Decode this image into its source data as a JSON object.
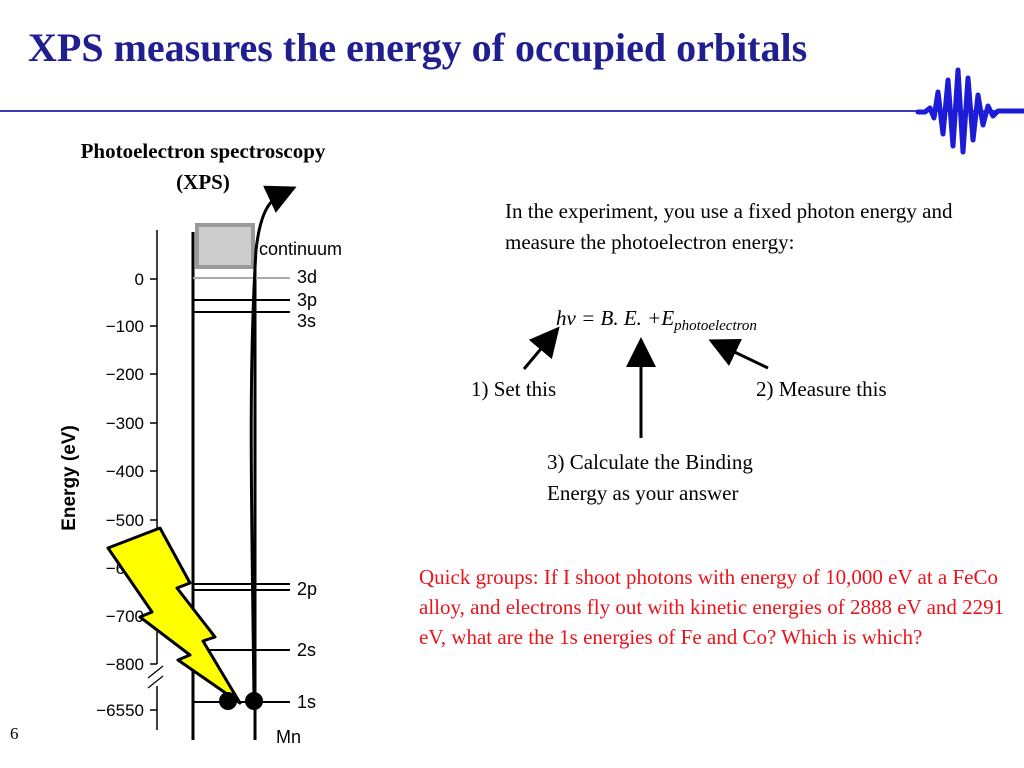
{
  "title": "XPS measures the energy of occupied orbitals",
  "diagram": {
    "heading_line1": "Photoelectron spectroscopy",
    "heading_line2": "(XPS)",
    "y_axis_label": "Energy (eV)",
    "ticks": [
      "0",
      "−100",
      "−200",
      "−300",
      "−400",
      "−500",
      "−600",
      "−700",
      "−800",
      "−6550"
    ],
    "levels": {
      "continuum": "continuum",
      "l3d": "3d",
      "l3p": "3p",
      "l3s": "3s",
      "l2p": "2p",
      "l2s": "2s",
      "l1s": "1s"
    },
    "element": "Mn"
  },
  "experiment": {
    "text": "In the experiment, you use a fixed photon energy and measure the photoelectron energy:"
  },
  "equation": {
    "main": "hν = B. E. +E",
    "subscript": "photoelectron"
  },
  "steps": {
    "set": "1) Set this",
    "measure": "2) Measure this",
    "calculate_line1": "3) Calculate the Binding",
    "calculate_line2": "Energy as your answer"
  },
  "quick_groups": "Quick groups: If I shoot photons with energy of 10,000 eV at a FeCo alloy, and electrons fly out with kinetic energies of 2888 eV and 2291 eV, what are the 1s energies of Fe and Co?  Which is which?",
  "page_number": "6",
  "colors": {
    "title": "#1f1f8f",
    "rule": "#3a3ab8",
    "quick_groups": "#e8141c",
    "lightning": "#ffff00",
    "logo": "#1c1cd6"
  },
  "icons": [
    "waveform-logo-icon",
    "lightning-bolt-icon"
  ]
}
